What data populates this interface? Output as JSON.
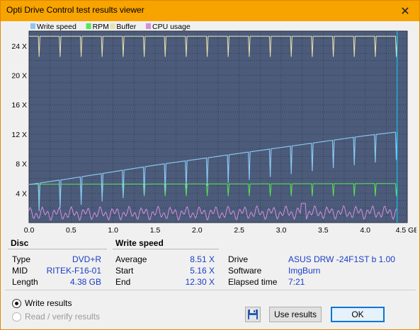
{
  "window": {
    "title": "Opti Drive Control test results viewer",
    "close_glyph": "✕"
  },
  "colors": {
    "write_speed": "#8ac6f0",
    "rpm": "#55e855",
    "buffer": "#e6e2b0",
    "cpu": "#d58fe0",
    "plot_bg": "#4c5b7a",
    "cursor": "#00d5ff"
  },
  "chart_data": {
    "type": "line",
    "legend": [
      "Write speed",
      "RPM",
      "Buffer",
      "CPU usage"
    ],
    "legend_placement": "top-left",
    "x_ticks": [
      "0.0",
      "0.5",
      "1.0",
      "1.5",
      "2.0",
      "2.5",
      "3.0",
      "3.5",
      "4.0",
      "4.5 GB"
    ],
    "y_ticks": [
      "4 X",
      "8 X",
      "12 X",
      "16 X",
      "20 X",
      "24 X"
    ],
    "xlim": [
      0,
      4.5
    ],
    "ylim": [
      0,
      26
    ],
    "grid": true,
    "series": [
      {
        "name": "Write speed",
        "x": [
          0.0,
          0.5,
          1.0,
          1.5,
          2.0,
          2.5,
          3.0,
          3.5,
          4.0,
          4.38
        ],
        "y": [
          5.16,
          6.0,
          6.9,
          7.8,
          8.6,
          9.4,
          10.2,
          11.0,
          11.8,
          12.3
        ]
      },
      {
        "name": "RPM",
        "x": [
          0.0,
          4.38
        ],
        "y": [
          5.2,
          5.3
        ]
      },
      {
        "name": "Buffer",
        "x": [
          0.0,
          4.38
        ],
        "y": [
          25.3,
          25.3
        ]
      },
      {
        "name": "CPU usage",
        "x": [
          0.0,
          4.38
        ],
        "y": [
          1.2,
          1.4
        ]
      }
    ],
    "cursor_x": 4.38
  },
  "disc": {
    "header": "Disc",
    "rows": [
      {
        "label": "Type",
        "value": "DVD+R"
      },
      {
        "label": "MID",
        "value": "RITEK-F16-01"
      },
      {
        "label": "Length",
        "value": "4.38 GB"
      }
    ]
  },
  "write_speed": {
    "header": "Write speed",
    "rows": [
      {
        "label": "Average",
        "value": "8.51 X"
      },
      {
        "label": "Start",
        "value": "5.16 X"
      },
      {
        "label": "End",
        "value": "12.30 X"
      }
    ]
  },
  "drive": {
    "rows": [
      {
        "label": "Drive",
        "value": "ASUS DRW -24F1ST   b 1.00"
      },
      {
        "label": "Software",
        "value": "ImgBurn"
      },
      {
        "label": "Elapsed time",
        "value": "7:21"
      }
    ]
  },
  "options": {
    "write_results": "Write results",
    "read_verify": "Read / verify results"
  },
  "buttons": {
    "use_results": "Use results",
    "ok": "OK",
    "save_icon": "floppy-disk"
  }
}
